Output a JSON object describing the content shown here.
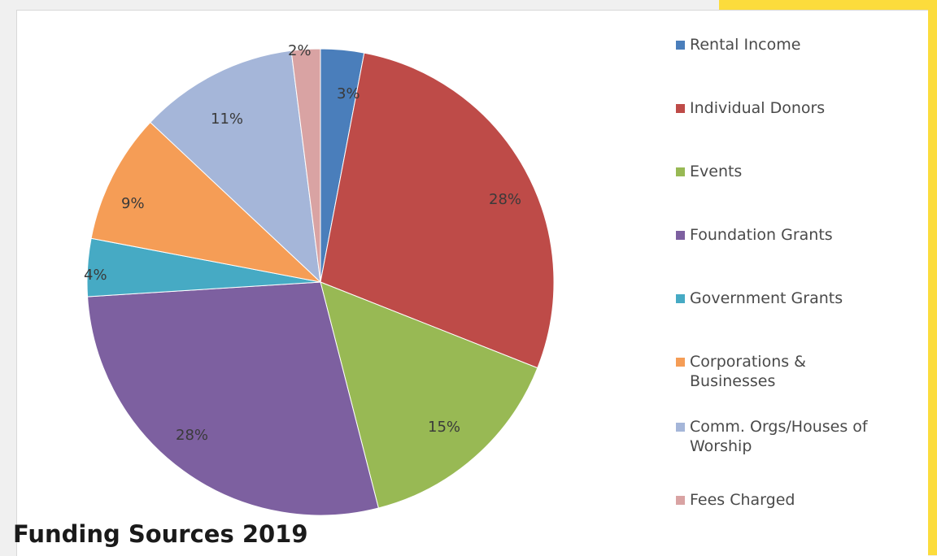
{
  "chart_data": {
    "type": "pie",
    "title": "Funding Sources 2019",
    "legend_position": "right",
    "slices": [
      {
        "label": "Rental Income",
        "value": 3,
        "display": "3%",
        "color": "#4a7ebb"
      },
      {
        "label": "Individual Donors",
        "value": 28,
        "display": "28%",
        "color": "#be4b48"
      },
      {
        "label": "Events",
        "value": 15,
        "display": "15%",
        "color": "#98b954"
      },
      {
        "label": "Foundation Grants",
        "value": 28,
        "display": "28%",
        "color": "#7d60a0"
      },
      {
        "label": "Government Grants",
        "value": 4,
        "display": "4%",
        "color": "#46aac4"
      },
      {
        "label": "Corporations & Businesses",
        "value": 9,
        "display": "9%",
        "color": "#f59d56"
      },
      {
        "label": "Comm. Orgs/Houses of Worship",
        "value": 11,
        "display": "11%",
        "color": "#a5b6d9"
      },
      {
        "label": "Fees Charged",
        "value": 2,
        "display": "2%",
        "color": "#d9a3a3"
      }
    ]
  },
  "footer": {
    "title": "Funding Sources 2019"
  }
}
